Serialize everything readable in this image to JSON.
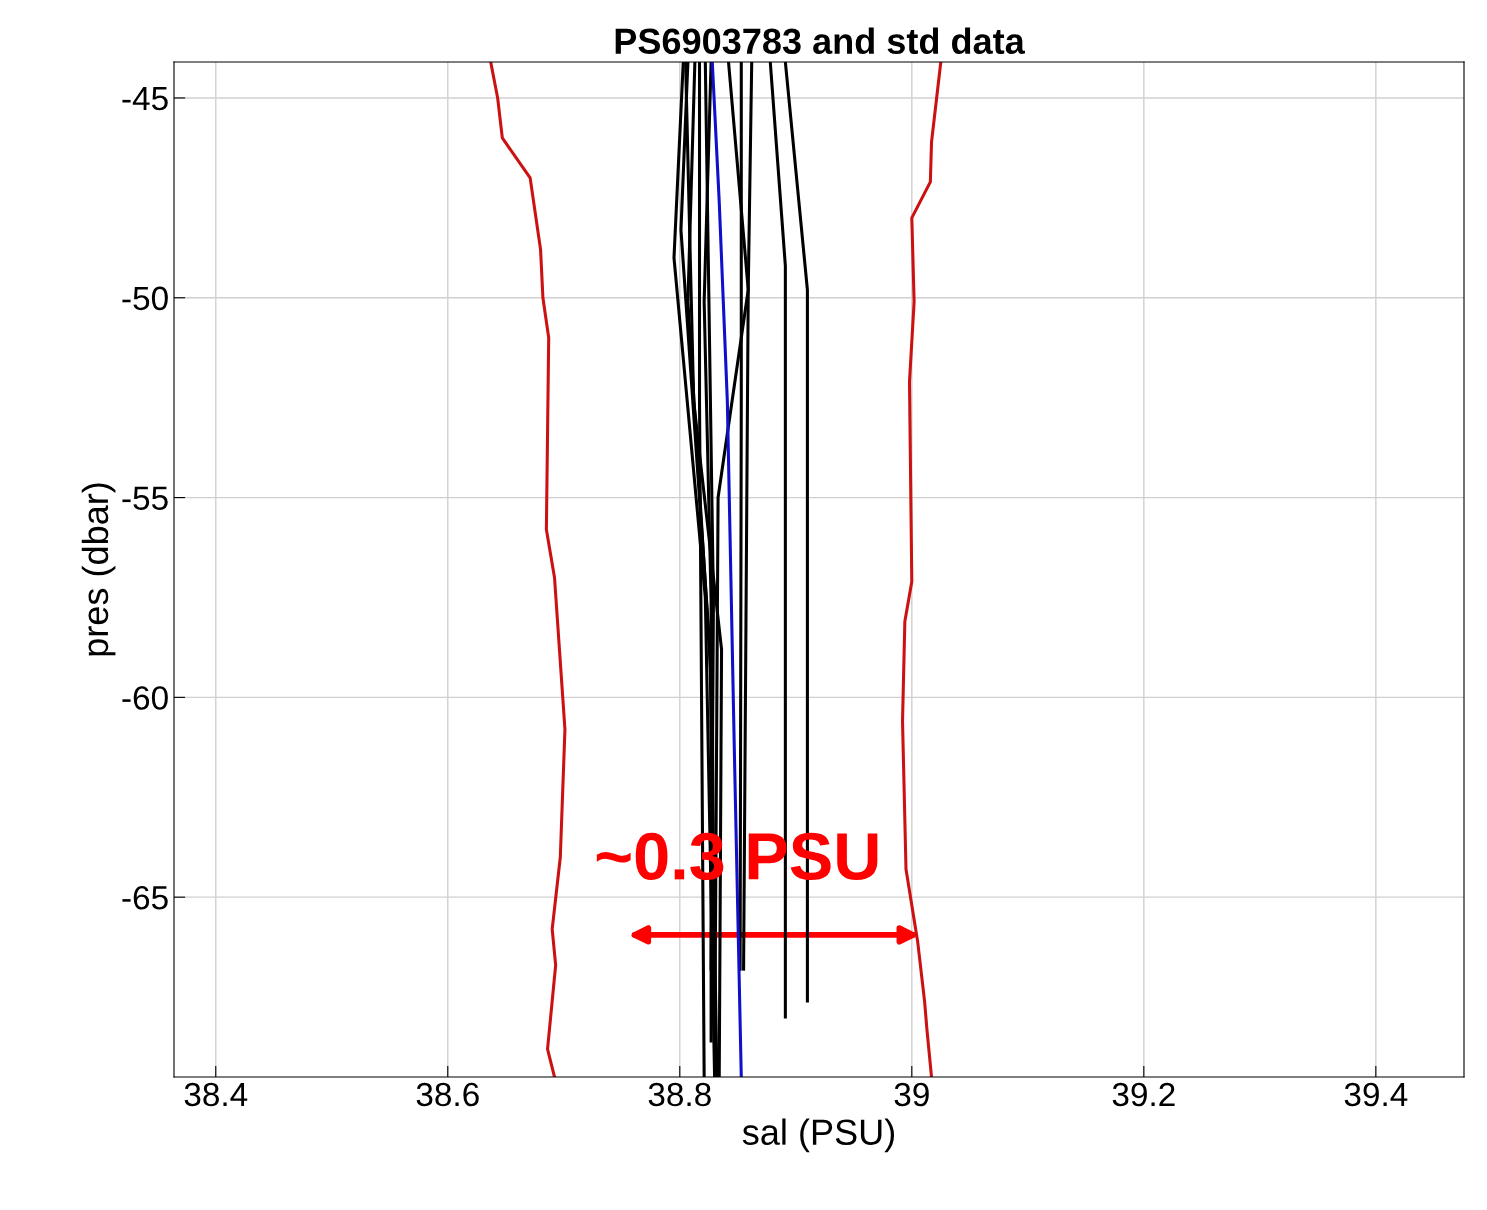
{
  "chart_data": {
    "type": "line",
    "title": "PS6903783 and std data",
    "xlabel": "sal (PSU)",
    "ylabel": "pres (dbar)",
    "xlim": [
      38.364,
      39.476
    ],
    "ylim": [
      -69.5,
      -44.1
    ],
    "xticks": [
      38.4,
      38.6,
      38.8,
      39,
      39.2,
      39.4
    ],
    "yticks": [
      -65,
      -60,
      -55,
      -50,
      -45
    ],
    "grid": true,
    "marker": "none",
    "line_style": "solid",
    "series": [
      {
        "color": "#cc1111",
        "x": [
          38.637,
          38.643,
          38.647,
          38.671,
          38.68,
          38.682,
          38.687,
          38.685,
          38.692,
          38.701,
          38.697,
          38.69,
          38.693,
          38.686,
          38.692
        ],
        "values": [
          -44.1,
          -45,
          -46,
          -47,
          -48.8,
          -50,
          -51,
          -55.8,
          -57,
          -60.8,
          -64,
          -65.8,
          -66.7,
          -68.8,
          -69.5
        ]
      },
      {
        "color": "#cc1111",
        "x": [
          39.025,
          39.021,
          39.017,
          39.016,
          39.0,
          39.002,
          38.998,
          39.0,
          38.994,
          38.992,
          38.995,
          39.005,
          39.011,
          39.013,
          39.017
        ],
        "values": [
          -44.1,
          -45.1,
          -46.1,
          -47.1,
          -48,
          -50.1,
          -52.1,
          -57.1,
          -58.1,
          -60.6,
          -64.3,
          -66.1,
          -67.6,
          -68.3,
          -69.5
        ]
      },
      {
        "color": "#000000",
        "x": [
          38.803,
          38.795,
          38.822,
          38.83
        ],
        "values": [
          -44.1,
          -49,
          -57.5,
          -69.5
        ]
      },
      {
        "color": "#000000",
        "x": [
          38.807,
          38.801,
          38.826,
          38.832
        ],
        "values": [
          -44.1,
          -48.3,
          -58.8,
          -69.5
        ]
      },
      {
        "color": "#000000",
        "x": [
          38.813,
          38.807,
          38.828,
          38.83
        ],
        "values": [
          -44.1,
          -50.1,
          -60,
          -68.8
        ]
      },
      {
        "color": "#000000",
        "x": [
          38.817,
          38.817,
          38.821
        ],
        "values": [
          -44.1,
          -52.6,
          -69.5
        ]
      },
      {
        "color": "#000000",
        "x": [
          38.822,
          38.829,
          38.827
        ],
        "values": [
          -44.1,
          -57.6,
          -66.8
        ]
      },
      {
        "color": "#000000",
        "x": [
          38.805,
          38.812,
          38.836,
          38.834
        ],
        "values": [
          -44.1,
          -52.6,
          -58.8,
          -69.5
        ]
      },
      {
        "color": "#000000",
        "x": [
          38.827,
          38.821,
          38.827,
          38.827
        ],
        "values": [
          -44.1,
          -50.1,
          -57.6,
          -68.6
        ]
      },
      {
        "color": "#000000",
        "x": [
          38.842,
          38.859,
          38.833,
          38.83
        ],
        "values": [
          -44.1,
          -49.8,
          -55,
          -69.5
        ]
      },
      {
        "color": "#000000",
        "x": [
          38.853,
          38.853,
          38.852
        ],
        "values": [
          -44.1,
          -52.6,
          -66.8
        ]
      },
      {
        "color": "#000000",
        "x": [
          38.862,
          38.859,
          38.855
        ],
        "values": [
          -44.1,
          -49.8,
          -66.8
        ]
      },
      {
        "color": "#000000",
        "x": [
          38.878,
          38.891,
          38.891
        ],
        "values": [
          -44.1,
          -49.2,
          -68
        ]
      },
      {
        "color": "#000000",
        "x": [
          38.891,
          38.91,
          38.91
        ],
        "values": [
          -44.1,
          -49.8,
          -67.6
        ]
      },
      {
        "color": "#1010cc",
        "x": [
          38.828,
          38.834,
          38.841,
          38.847,
          38.853
        ],
        "values": [
          -44.1,
          -47.6,
          -52.6,
          -61.3,
          -69.5
        ]
      }
    ],
    "annotations": [
      {
        "text": "~0.3 PSU",
        "x": 38.85,
        "y": -64.9
      }
    ]
  }
}
